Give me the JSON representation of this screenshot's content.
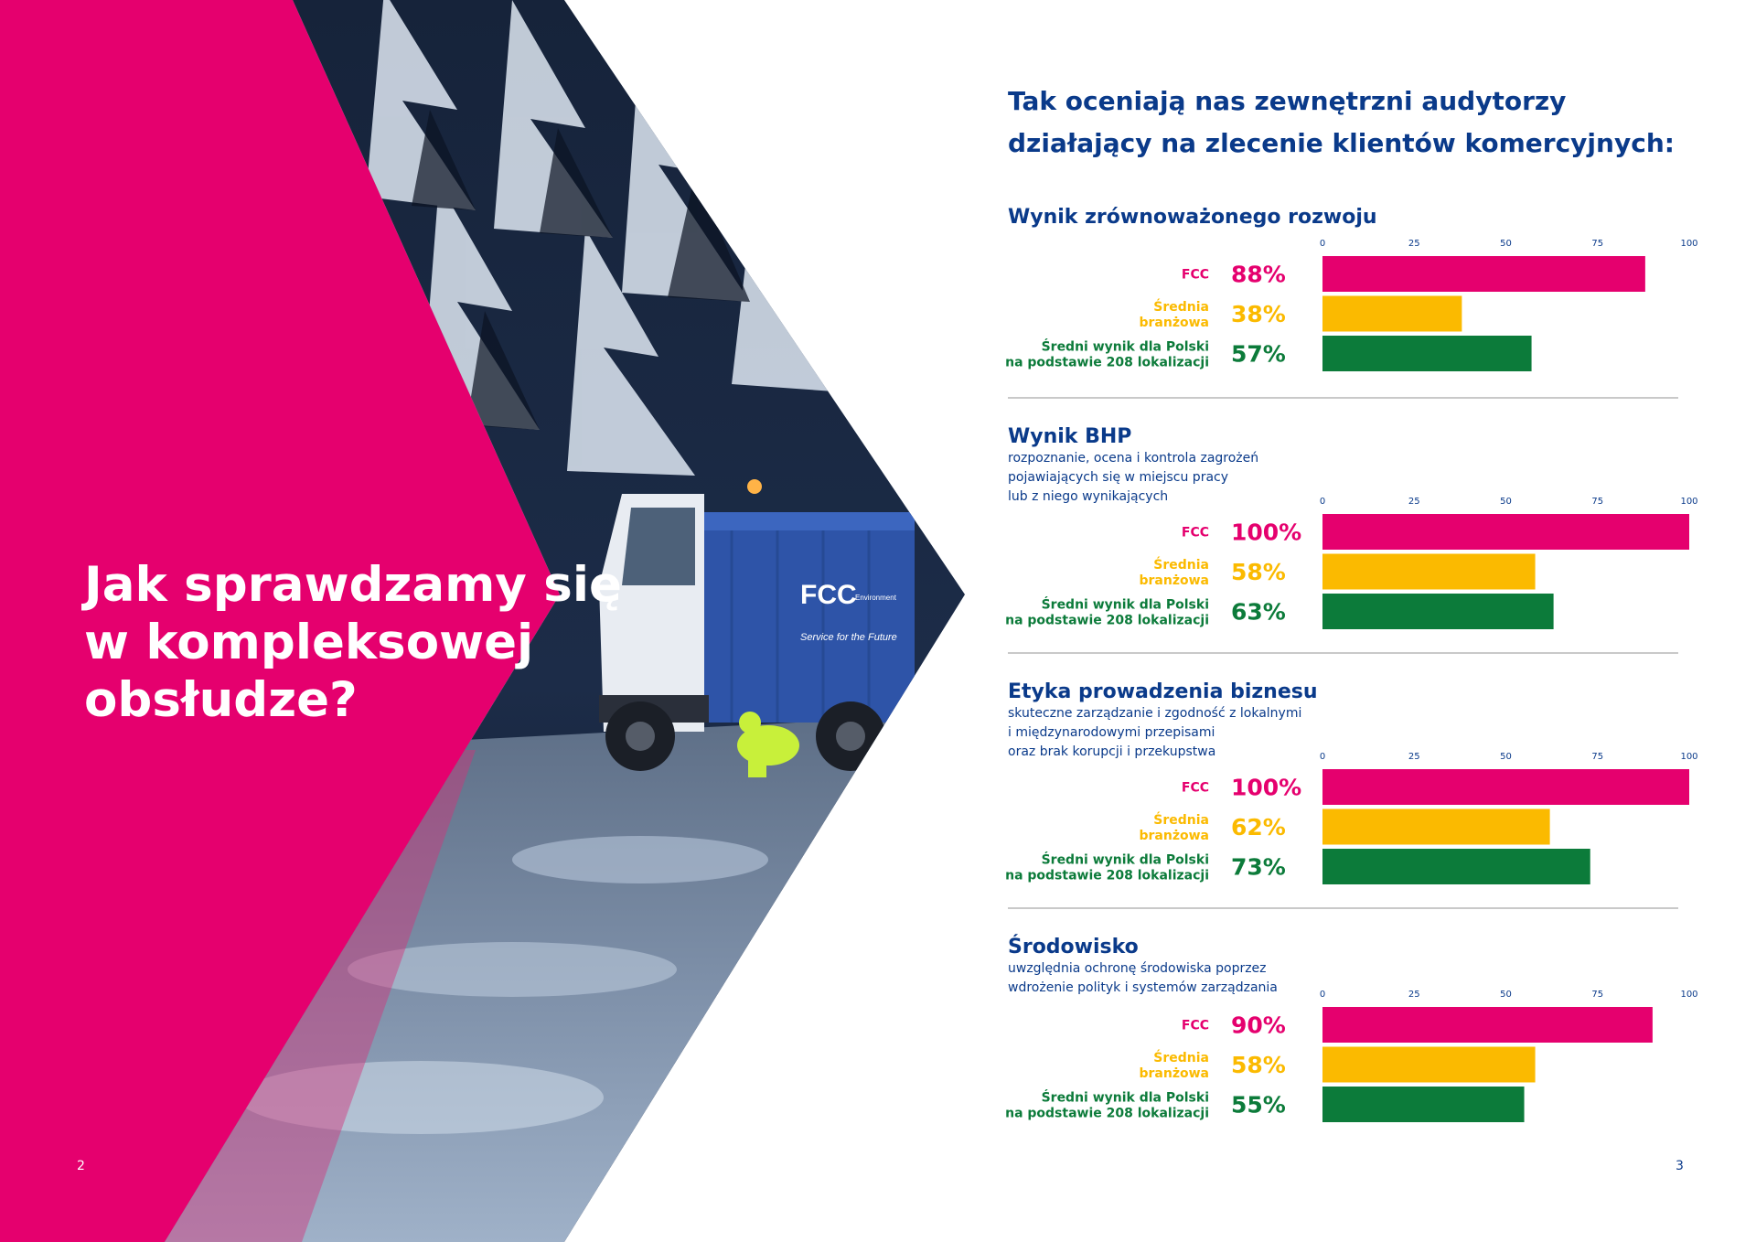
{
  "left_page": {
    "headline": [
      "Jak sprawdzamy się",
      "w kompleksowej",
      "obsłudze?"
    ],
    "page_number": "2",
    "photo": {
      "truck_logo": "FCC",
      "truck_logo_sub": "Environment",
      "truck_slogan": "Service for the Future"
    }
  },
  "right_page": {
    "intro": [
      "Tak oceniają nas zewnętrzni audytorzy",
      "działający na zlecenie klientów komercyjnych:"
    ],
    "page_number": "3"
  },
  "colors": {
    "fcc": "#e5006e",
    "industry": "#fbba00",
    "poland": "#0c7b3a",
    "navy": "#0a3a8a",
    "rule": "#c9c9c9"
  },
  "chart_data": [
    {
      "type": "bar",
      "orientation": "horizontal",
      "title": "Wynik zrównoważonego rozwoju",
      "subtitle": [],
      "ticks": [
        "0",
        "25",
        "50",
        "75",
        "100"
      ],
      "xlim": [
        0,
        100
      ],
      "categories": [
        [
          "FCC"
        ],
        [
          "Średnia",
          "branżowa"
        ],
        [
          "Średni wynik dla Polski",
          "na podstawie 208 lokalizacji"
        ]
      ],
      "values": [
        88,
        38,
        57
      ],
      "labels": [
        "88%",
        "38%",
        "57%"
      ]
    },
    {
      "type": "bar",
      "orientation": "horizontal",
      "title": "Wynik BHP",
      "subtitle": [
        "rozpoznanie, ocena i kontrola zagrożeń",
        "pojawiających się w miejscu pracy",
        "lub z niego wynikających"
      ],
      "ticks": [
        "0",
        "25",
        "50",
        "75",
        "100"
      ],
      "xlim": [
        0,
        100
      ],
      "categories": [
        [
          "FCC"
        ],
        [
          "Średnia",
          "branżowa"
        ],
        [
          "Średni wynik dla Polski",
          "na podstawie 208 lokalizacji"
        ]
      ],
      "values": [
        100,
        58,
        63
      ],
      "labels": [
        "100%",
        "58%",
        "63%"
      ]
    },
    {
      "type": "bar",
      "orientation": "horizontal",
      "title": "Etyka prowadzenia biznesu",
      "subtitle": [
        "skuteczne zarządzanie i zgodność z lokalnymi",
        "i międzynarodowymi przepisami",
        "oraz brak korupcji i przekupstwa"
      ],
      "ticks": [
        "0",
        "25",
        "50",
        "75",
        "100"
      ],
      "xlim": [
        0,
        100
      ],
      "categories": [
        [
          "FCC"
        ],
        [
          "Średnia",
          "branżowa"
        ],
        [
          "Średni wynik dla Polski",
          "na podstawie 208 lokalizacji"
        ]
      ],
      "values": [
        100,
        62,
        73
      ],
      "labels": [
        "100%",
        "62%",
        "73%"
      ]
    },
    {
      "type": "bar",
      "orientation": "horizontal",
      "title": "Środowisko",
      "subtitle": [
        "uwzględnia ochronę środowiska poprzez",
        "wdrożenie polityk i systemów zarządzania"
      ],
      "ticks": [
        "0",
        "25",
        "50",
        "75",
        "100"
      ],
      "xlim": [
        0,
        100
      ],
      "categories": [
        [
          "FCC"
        ],
        [
          "Średnia",
          "branżowa"
        ],
        [
          "Średni wynik dla Polski",
          "na podstawie 208 lokalizacji"
        ]
      ],
      "values": [
        90,
        58,
        55
      ],
      "labels": [
        "90%",
        "58%",
        "55%"
      ]
    }
  ]
}
